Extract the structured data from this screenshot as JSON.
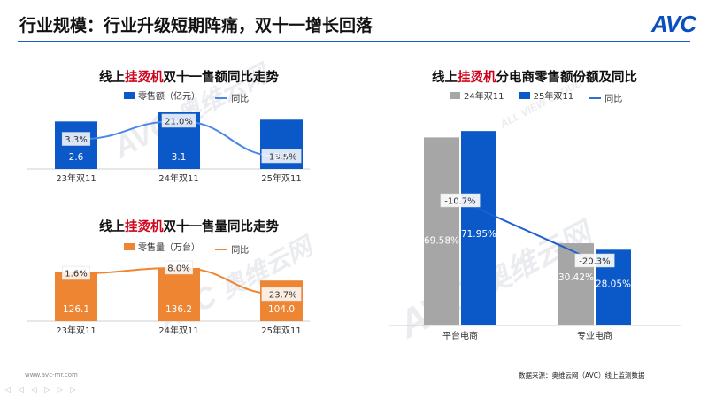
{
  "header": {
    "title": "行业规模：行业升级短期阵痛，双十一增长回落",
    "logo": "AVC"
  },
  "watermark": {
    "cn": "奥维云网",
    "en": "ALL VIEW CLOUD",
    "logo": "AVC"
  },
  "footer": {
    "site": "www.avc-mr.com",
    "source": "数据来源：奥维云网（AVC）线上监测数据",
    "nav": "◁ ◁ ◁ ▷ ▷ ▷"
  },
  "colors": {
    "blue": "#0b59c8",
    "orange": "#ee8532",
    "gray": "#a6a6a6",
    "highlight": "#d0021b"
  },
  "chart_data": [
    {
      "type": "bar",
      "title_prefix": "线上",
      "title_highlight": "挂烫机",
      "title_suffix": "双十一售额同比走势",
      "categories": [
        "23年双11",
        "24年双11",
        "25年双11"
      ],
      "series": [
        {
          "name": "零售额（亿元）",
          "kind": "bar",
          "values": [
            2.6,
            3.1,
            2.7
          ],
          "labels": [
            "2.6",
            "3.1",
            "2.7"
          ]
        },
        {
          "name": "同比",
          "kind": "line",
          "values": [
            3.3,
            21.0,
            -13.5
          ],
          "labels": [
            "3.3%",
            "21.0%",
            "-13.5%"
          ]
        }
      ]
    },
    {
      "type": "bar",
      "title_prefix": "线上",
      "title_highlight": "挂烫机",
      "title_suffix": "双十一售量同比走势",
      "categories": [
        "23年双11",
        "24年双11",
        "25年双11"
      ],
      "series": [
        {
          "name": "零售量（万台）",
          "kind": "bar",
          "values": [
            126.1,
            136.2,
            104.0
          ],
          "labels": [
            "126.1",
            "136.2",
            "104.0"
          ]
        },
        {
          "name": "同比",
          "kind": "line",
          "values": [
            1.6,
            8.0,
            -23.7
          ],
          "labels": [
            "1.6%",
            "8.0%",
            "-23.7%"
          ]
        }
      ]
    },
    {
      "type": "bar",
      "title_prefix": "线上",
      "title_highlight": "挂烫机",
      "title_suffix": "分电商零售额份额及同比",
      "categories": [
        "平台电商",
        "专业电商"
      ],
      "series": [
        {
          "name": "24年双11",
          "kind": "bar",
          "values": [
            69.58,
            30.42
          ],
          "labels": [
            "69.58%",
            "30.42%"
          ]
        },
        {
          "name": "25年双11",
          "kind": "bar",
          "values": [
            71.95,
            28.05
          ],
          "labels": [
            "71.95%",
            "28.05%"
          ]
        },
        {
          "name": "同比",
          "kind": "line",
          "values": [
            -10.7,
            -20.3
          ],
          "labels": [
            "-10.7%",
            "-20.3%"
          ]
        }
      ]
    }
  ]
}
